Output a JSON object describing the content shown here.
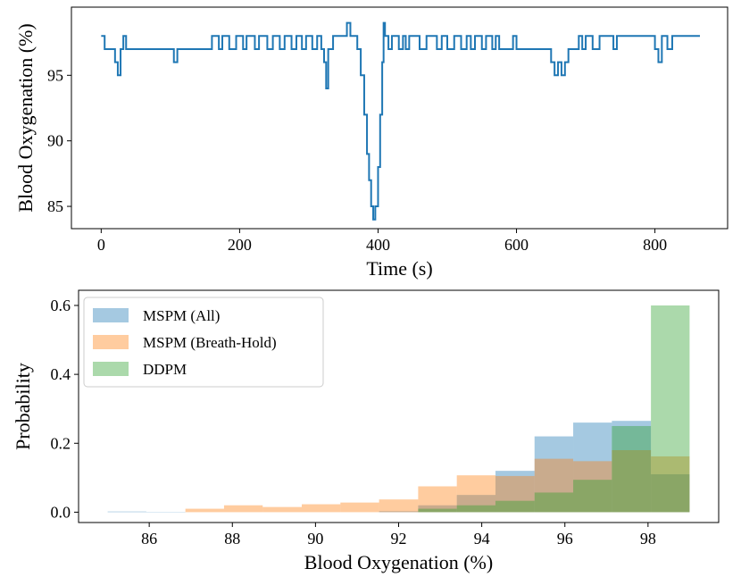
{
  "chart_data": [
    {
      "type": "line",
      "step": "post",
      "xlabel": "Time (s)",
      "ylabel": "Blood Oxygenation (%)",
      "xlim": [
        -43,
        905
      ],
      "ylim": [
        83.3,
        100.2
      ],
      "xticks": [
        0,
        200,
        400,
        600,
        800
      ],
      "yticks": [
        85,
        90,
        95
      ],
      "series": [
        {
          "name": null,
          "color": "#1f77b4",
          "x": [
            0,
            5,
            20,
            24,
            28,
            32,
            36,
            105,
            110,
            160,
            170,
            175,
            185,
            195,
            205,
            210,
            222,
            228,
            240,
            248,
            258,
            265,
            275,
            282,
            290,
            296,
            305,
            312,
            318,
            322,
            325,
            328,
            335,
            355,
            360,
            370,
            375,
            380,
            384,
            387,
            390,
            393,
            396,
            400,
            403,
            406,
            408,
            410,
            415,
            420,
            430,
            436,
            440,
            445,
            460,
            470,
            485,
            492,
            500,
            510,
            520,
            528,
            534,
            540,
            550,
            556,
            565,
            570,
            575,
            595,
            600,
            650,
            655,
            660,
            665,
            670,
            675,
            690,
            695,
            700,
            710,
            720,
            740,
            745,
            800,
            805,
            810,
            818,
            825,
            865
          ],
          "values": [
            98,
            97,
            96,
            95,
            97,
            98,
            97,
            96,
            97,
            98,
            97,
            98,
            97,
            98,
            97,
            98,
            97,
            98,
            97,
            98,
            97,
            98,
            97,
            98,
            97,
            98,
            97,
            98,
            97,
            96,
            94,
            97,
            98,
            99,
            98,
            97,
            95,
            92,
            89,
            87,
            85,
            84,
            85,
            88,
            92,
            96,
            99,
            98,
            97,
            98,
            97,
            98,
            97,
            98,
            97,
            98,
            97,
            98,
            97,
            98,
            97,
            98,
            97,
            98,
            97,
            98,
            97,
            98,
            97,
            98,
            97,
            96,
            95,
            96,
            95,
            96,
            97,
            98,
            97,
            98,
            97,
            98,
            97,
            98,
            97,
            96,
            98,
            97,
            98,
            98
          ]
        }
      ]
    },
    {
      "type": "histogram",
      "xlabel": "Blood Oxygenation (%)",
      "ylabel": "Probability",
      "xlim": [
        84.3,
        99.7
      ],
      "ylim": [
        -0.03,
        0.644
      ],
      "xticks": [
        86,
        88,
        90,
        92,
        94,
        96,
        98
      ],
      "yticks": [
        {
          "value": 0,
          "label": "0.0"
        },
        {
          "value": 0.2,
          "label": "0.2"
        },
        {
          "value": 0.4,
          "label": "0.4"
        },
        {
          "value": 0.6,
          "label": "0.6"
        }
      ],
      "legend": "upper left",
      "opacity": 0.4,
      "bins": [
        85,
        85.93,
        86.87,
        87.8,
        88.73,
        89.67,
        90.6,
        91.53,
        92.47,
        93.4,
        94.33,
        95.27,
        96.2,
        97.13,
        98.07,
        99
      ],
      "series": [
        {
          "name": "MSPM (All)",
          "color": "#1f77b4",
          "values": [
            0.002,
            0.001,
            0,
            0,
            0,
            0,
            0,
            0.003,
            0.02,
            0.05,
            0.12,
            0.22,
            0.26,
            0.265,
            0.11
          ]
        },
        {
          "name": "MSPM (Breath-Hold)",
          "color": "#ff7f0e",
          "values": [
            0,
            0,
            0.01,
            0.02,
            0.015,
            0.023,
            0.028,
            0.037,
            0.075,
            0.107,
            0.105,
            0.155,
            0.148,
            0.18,
            0.162
          ]
        },
        {
          "name": "DDPM",
          "color": "#2ca02c",
          "values": [
            0,
            0,
            0,
            0,
            0,
            0,
            0,
            0,
            0.01,
            0.02,
            0.033,
            0.057,
            0.094,
            0.25,
            0.6
          ]
        }
      ]
    }
  ]
}
